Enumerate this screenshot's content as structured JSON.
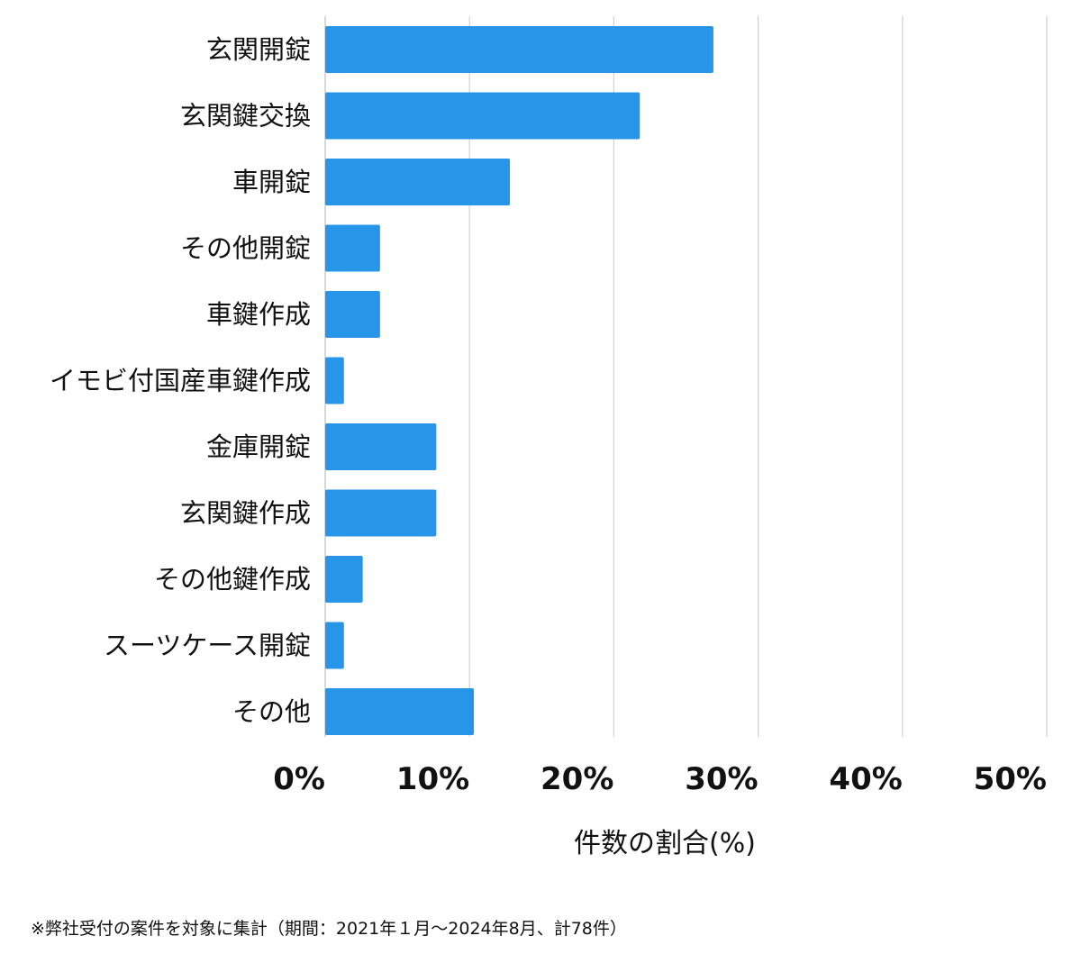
{
  "chart_data": {
    "type": "bar",
    "orientation": "horizontal",
    "title": "",
    "categories": [
      "玄関開錠",
      "玄関鍵交換",
      "車開錠",
      "その他開錠",
      "車鍵作成",
      "イモビ付国産車鍵作成",
      "金庫開錠",
      "玄関鍵作成",
      "その他鍵作成",
      "スーツケース開錠",
      "その他"
    ],
    "values": [
      26.9,
      21.8,
      12.8,
      3.8,
      3.8,
      1.3,
      7.7,
      7.7,
      2.6,
      1.3,
      10.3
    ],
    "xlim": [
      0,
      50
    ],
    "xticks": [
      0,
      10,
      20,
      30,
      40,
      50
    ],
    "xtick_labels": [
      "0%",
      "10%",
      "20%",
      "30%",
      "40%",
      "50%"
    ],
    "xlabel": "件数の割合(%)",
    "ylabel": "",
    "grid": true,
    "bar_color": "#2896e8",
    "grid_color": "#d2d2d2"
  },
  "footnote": "※弊社受付の案件を対象に集計（期間：2021年１月〜2024年8月、計78件）"
}
